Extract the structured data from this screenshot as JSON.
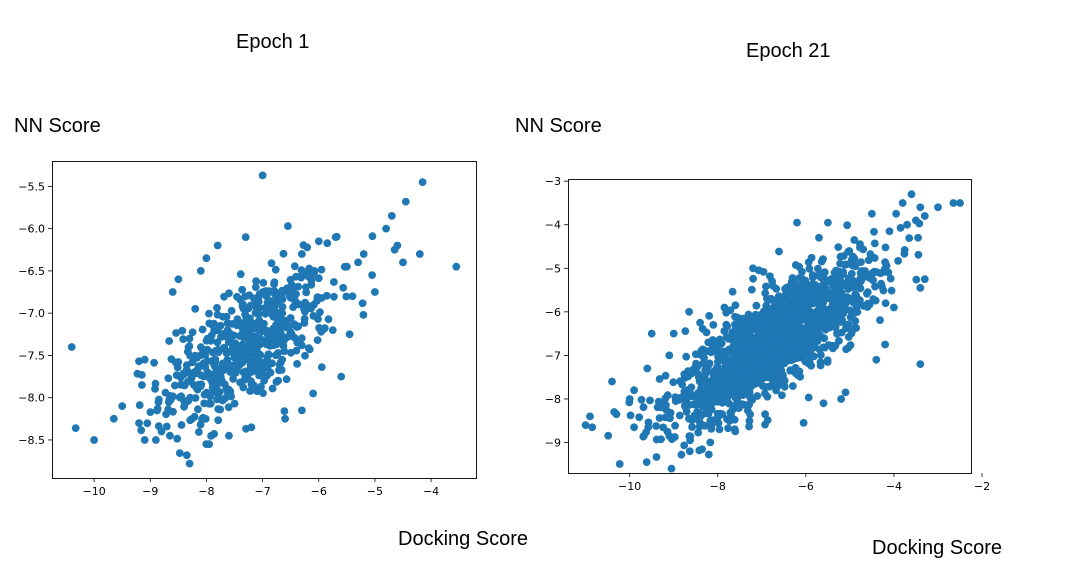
{
  "labels": {
    "title_left": "Epoch 1",
    "title_right": "Epoch 21",
    "ylabel_left": "NN Score",
    "ylabel_right": "NN Score",
    "xlabel_left": "Docking Score",
    "xlabel_right": "Docking Score"
  },
  "chart_data": [
    {
      "type": "scatter",
      "title": "Epoch 1",
      "xlabel": "Docking Score",
      "ylabel": "NN Score",
      "xlim": [
        -10.75,
        -3.2
      ],
      "ylim": [
        -8.95,
        -5.2
      ],
      "xticks": [
        -10,
        -9,
        -8,
        -7,
        -6,
        -5,
        -4
      ],
      "xtick_labels": [
        "−10",
        "−9",
        "−8",
        "−7",
        "−6",
        "−5",
        "−4"
      ],
      "yticks": [
        -5.5,
        -6.0,
        -6.5,
        -7.0,
        -7.5,
        -8.0,
        -8.5
      ],
      "ytick_labels": [
        "−5.5",
        "−6.0",
        "−6.5",
        "−7.0",
        "−7.5",
        "−8.0",
        "−8.5"
      ],
      "marker_color": "#1f77b4",
      "cluster": {
        "n": 560,
        "mean": [
          -7.3,
          -7.4
        ],
        "sd": [
          0.75,
          0.45
        ],
        "rho": 0.62
      },
      "points": [
        [
          -7.0,
          -5.37
        ],
        [
          -4.15,
          -5.45
        ],
        [
          -3.55,
          -6.45
        ],
        [
          -10.4,
          -7.4
        ],
        [
          -10.0,
          -8.5
        ],
        [
          -7.95,
          -8.55
        ],
        [
          -8.3,
          -8.78
        ],
        [
          -8.35,
          -8.68
        ],
        [
          -8.6,
          -6.75
        ],
        [
          -8.5,
          -6.6
        ],
        [
          -4.6,
          -6.2
        ],
        [
          -4.8,
          -6.0
        ],
        [
          -4.5,
          -6.4
        ],
        [
          -4.2,
          -6.3
        ],
        [
          -4.45,
          -5.68
        ],
        [
          -4.7,
          -5.85
        ],
        [
          -4.65,
          -6.25
        ],
        [
          -5.3,
          -6.4
        ],
        [
          -5.2,
          -6.3
        ],
        [
          -6.55,
          -5.97
        ],
        [
          -6.0,
          -6.15
        ],
        [
          -5.7,
          -6.1
        ],
        [
          -5.5,
          -6.45
        ],
        [
          -6.3,
          -6.3
        ],
        [
          -5.05,
          -6.55
        ],
        [
          -5.0,
          -6.75
        ],
        [
          -5.4,
          -6.8
        ],
        [
          -9.2,
          -7.57
        ],
        [
          -9.1,
          -7.55
        ],
        [
          -9.15,
          -7.85
        ],
        [
          -9.5,
          -8.1
        ],
        [
          -9.65,
          -8.25
        ],
        [
          -9.2,
          -8.3
        ],
        [
          -9.1,
          -8.5
        ],
        [
          -8.9,
          -8.5
        ],
        [
          -8.8,
          -8.4
        ],
        [
          -8.65,
          -8.45
        ],
        [
          -6.1,
          -7.95
        ],
        [
          -5.6,
          -7.75
        ],
        [
          -5.45,
          -7.25
        ],
        [
          -5.75,
          -7.2
        ],
        [
          -6.3,
          -8.15
        ],
        [
          -6.6,
          -8.25
        ],
        [
          -7.8,
          -6.2
        ],
        [
          -7.3,
          -6.1
        ],
        [
          -8.0,
          -6.35
        ],
        [
          -8.1,
          -6.5
        ],
        [
          -8.2,
          -6.95
        ],
        [
          -7.6,
          -8.45
        ],
        [
          -7.2,
          -8.35
        ]
      ]
    },
    {
      "type": "scatter",
      "title": "Epoch 21",
      "xlabel": "Docking Score",
      "ylabel": "NN Score",
      "xlim": [
        -11.4,
        -2.25
      ],
      "ylim": [
        -9.7,
        -2.95
      ],
      "xticks": [
        -10,
        -8,
        -6,
        -4,
        -2
      ],
      "xtick_labels": [
        "−10",
        "−8",
        "−6",
        "−4",
        "−2"
      ],
      "yticks": [
        -3,
        -4,
        -5,
        -6,
        -7,
        -8,
        -9
      ],
      "ytick_labels": [
        "−3",
        "−4",
        "−5",
        "−6",
        "−7",
        "−8",
        "−9"
      ],
      "marker_color": "#1f77b4",
      "cluster": {
        "n": 1500,
        "mean": [
          -6.8,
          -6.75
        ],
        "sd": [
          1.15,
          0.95
        ],
        "rho": 0.8
      },
      "points": [
        [
          -9.05,
          -9.6
        ],
        [
          -11.0,
          -8.6
        ],
        [
          -10.9,
          -8.4
        ],
        [
          -10.85,
          -8.65
        ],
        [
          -10.35,
          -8.3
        ],
        [
          -10.3,
          -8.35
        ],
        [
          -9.9,
          -8.65
        ],
        [
          -10.0,
          -8.0
        ],
        [
          -10.4,
          -7.6
        ],
        [
          -9.9,
          -7.8
        ],
        [
          -9.6,
          -7.3
        ],
        [
          -9.1,
          -8.85
        ],
        [
          -3.6,
          -3.3
        ],
        [
          -3.8,
          -3.5
        ],
        [
          -2.5,
          -3.5
        ],
        [
          -2.65,
          -3.5
        ],
        [
          -3.4,
          -3.6
        ],
        [
          -3.0,
          -3.6
        ],
        [
          -3.5,
          -3.9
        ],
        [
          -3.3,
          -3.8
        ],
        [
          -3.95,
          -3.75
        ],
        [
          -3.7,
          -4.0
        ],
        [
          -3.45,
          -4.3
        ],
        [
          -4.5,
          -3.75
        ],
        [
          -4.1,
          -4.15
        ],
        [
          -3.3,
          -5.25
        ],
        [
          -3.4,
          -5.45
        ],
        [
          -3.4,
          -7.2
        ],
        [
          -4.2,
          -6.75
        ],
        [
          -4.4,
          -7.1
        ],
        [
          -4.0,
          -5.9
        ],
        [
          -4.6,
          -5.15
        ],
        [
          -6.05,
          -8.55
        ],
        [
          -5.2,
          -8.0
        ],
        [
          -6.2,
          -3.95
        ],
        [
          -7.2,
          -5.0
        ],
        [
          -6.3,
          -5.3
        ],
        [
          -5.7,
          -4.3
        ],
        [
          -5.5,
          -3.95
        ],
        [
          -4.9,
          -4.35
        ],
        [
          -8.65,
          -6.0
        ],
        [
          -7.6,
          -5.85
        ],
        [
          -7.85,
          -5.9
        ],
        [
          -8.4,
          -6.25
        ],
        [
          -9.0,
          -6.5
        ],
        [
          -9.5,
          -6.5
        ],
        [
          -9.1,
          -7.0
        ],
        [
          -8.1,
          -6.3
        ],
        [
          -5.1,
          -7.85
        ],
        [
          -5.6,
          -8.1
        ]
      ]
    }
  ]
}
